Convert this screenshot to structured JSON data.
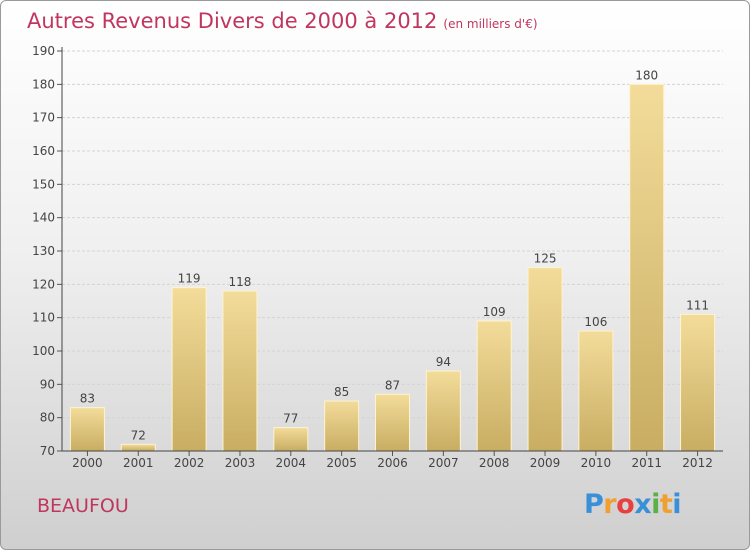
{
  "chart_data": {
    "type": "bar",
    "title": "Autres Revenus Divers de 2000 à 2012",
    "subtitle": "(en milliers d'€)",
    "categories": [
      "2000",
      "2001",
      "2002",
      "2003",
      "2004",
      "2005",
      "2006",
      "2007",
      "2008",
      "2009",
      "2010",
      "2011",
      "2012"
    ],
    "values": [
      83,
      72,
      119,
      118,
      77,
      85,
      87,
      94,
      109,
      125,
      106,
      180,
      111
    ],
    "ylim": [
      70,
      190
    ],
    "yticks": [
      70,
      80,
      90,
      100,
      110,
      120,
      130,
      140,
      150,
      160,
      170,
      180,
      190
    ],
    "grid": true,
    "bar_color": "#e9cf8a"
  },
  "commune": "BEAUFOU",
  "logo": {
    "letters": [
      "P",
      "r",
      "o",
      "x",
      "i",
      "t",
      "i"
    ],
    "colors": [
      "#3a8fd9",
      "#f0a030",
      "#e84040",
      "#3a8fd9",
      "#5bb04a",
      "#f0a030",
      "#3a8fd9"
    ]
  }
}
